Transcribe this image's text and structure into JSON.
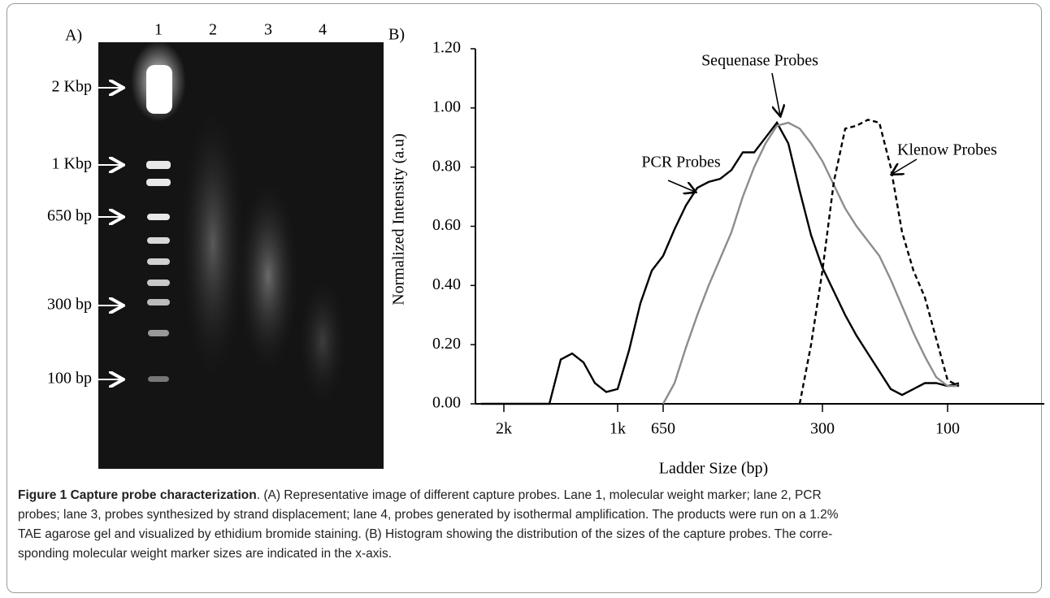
{
  "gel": {
    "panel": "A)",
    "lanes": [
      "1",
      "2",
      "3",
      "4"
    ],
    "markers": [
      "2 Kbp",
      "1 Kbp",
      "650 bp",
      "300 bp",
      "100 bp"
    ]
  },
  "chart_data": {
    "type": "line",
    "panel": "B)",
    "xlabel": "Ladder Size (bp)",
    "ylabel": "Normalized Intensity (a.u)",
    "categories": [
      null,
      null,
      "2k",
      null,
      null,
      null,
      null,
      null,
      null,
      null,
      null,
      null,
      "1k",
      null,
      null,
      null,
      "650",
      null,
      null,
      null,
      null,
      null,
      null,
      null,
      null,
      null,
      null,
      null,
      null,
      null,
      "300",
      null,
      null,
      null,
      null,
      null,
      null,
      null,
      null,
      null,
      null,
      "100",
      null,
      null,
      null,
      null,
      null,
      null,
      null,
      null
    ],
    "ylim": [
      0,
      1.2
    ],
    "yticks": [
      {
        "value": 0,
        "label": "0.00"
      },
      {
        "value": 0.2,
        "label": "0.20"
      },
      {
        "value": 0.4,
        "label": "0.40"
      },
      {
        "value": 0.6,
        "label": "0.60"
      },
      {
        "value": 0.8,
        "label": "0.80"
      },
      {
        "value": 1,
        "label": "1.00"
      },
      {
        "value": 1.2,
        "label": "1.20"
      }
    ],
    "series": [
      {
        "name": "PCR Probes",
        "color": "#000000",
        "line_style": "solid",
        "values": [
          0,
          0,
          0,
          0,
          0,
          0,
          0,
          0.15,
          0.17,
          0.14,
          0.07,
          0.04,
          0.05,
          0.18,
          0.34,
          0.45,
          0.5,
          0.59,
          0.67,
          0.73,
          0.75,
          0.76,
          0.79,
          0.85,
          0.85,
          0.9,
          0.95,
          0.88,
          0.72,
          0.57,
          0.46,
          0.38,
          0.3,
          0.23,
          0.17,
          0.11,
          0.05,
          0.03,
          0.05,
          0.07,
          0.07,
          0.06,
          0.07,
          null,
          null,
          null,
          null,
          null,
          null,
          null
        ]
      },
      {
        "name": "Sequenase Probes",
        "color": "#8c8c8c",
        "line_style": "solid",
        "values": [
          null,
          null,
          null,
          null,
          null,
          null,
          null,
          null,
          null,
          null,
          null,
          null,
          null,
          null,
          null,
          null,
          0,
          0.07,
          0.19,
          0.3,
          0.4,
          0.49,
          0.58,
          0.7,
          0.8,
          0.88,
          0.94,
          0.95,
          0.93,
          0.88,
          0.82,
          0.74,
          0.66,
          0.6,
          0.55,
          0.5,
          0.42,
          0.33,
          0.24,
          0.16,
          0.09,
          0.06,
          0.06,
          null,
          null,
          null,
          null,
          null,
          null,
          null
        ]
      },
      {
        "name": "Klenow Probes",
        "color": "#000000",
        "line_style": "dashed",
        "values": [
          null,
          null,
          null,
          null,
          null,
          null,
          null,
          null,
          null,
          null,
          null,
          null,
          null,
          null,
          null,
          null,
          null,
          null,
          null,
          null,
          null,
          null,
          null,
          null,
          null,
          null,
          null,
          null,
          0,
          0.2,
          0.45,
          0.75,
          0.93,
          0.94,
          0.96,
          0.95,
          0.8,
          0.58,
          0.45,
          0.36,
          0.22,
          0.08,
          0.06,
          null,
          null,
          null,
          null,
          null,
          null,
          null
        ]
      }
    ]
  },
  "caption": {
    "label": "Figure 1 Capture probe characterization",
    "lines": [
      ". (A) Representative image of different capture probes. Lane 1, molecular weight marker; lane 2, PCR",
      "probes; lane 3, probes synthesized by strand displacement; lane 4, probes generated by isothermal amplification. The products were run on a 1.2%",
      "TAE agarose gel and visualized by ethidium bromide staining. (B) Histogram showing the distribution of the sizes of the capture probes. The corre-",
      "sponding molecular weight marker sizes are indicated in the x-axis."
    ]
  }
}
